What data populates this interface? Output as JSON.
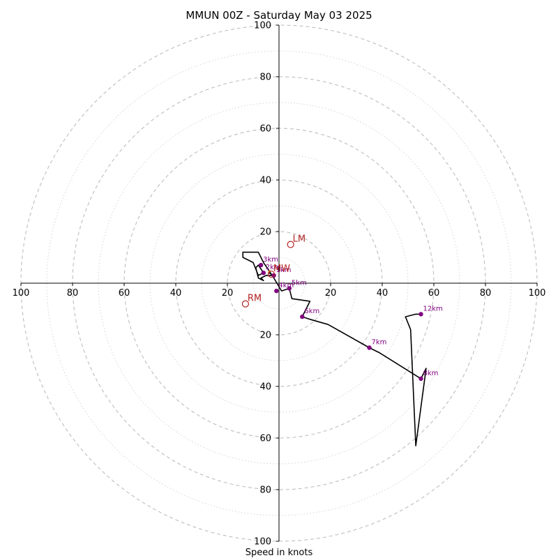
{
  "chart_data": {
    "type": "scatter",
    "title": "MMUN 00Z - Saturday May 03 2025",
    "xlabel": "Speed in knots",
    "ylabel": "",
    "xlim": [
      -100,
      100
    ],
    "ylim": [
      -100,
      100
    ],
    "grid": true,
    "ring_labels": {
      "x_left": [
        "100",
        "80",
        "60",
        "40",
        "20"
      ],
      "x_right": [
        "20",
        "40",
        "60",
        "80",
        "100"
      ],
      "y_top": [
        "100",
        "80",
        "60",
        "40",
        "20"
      ],
      "y_bottom": [
        "20",
        "40",
        "60",
        "80",
        "100"
      ]
    },
    "hodograph": {
      "color": "#000000",
      "x": [
        -4,
        -2,
        -5,
        -7,
        -6,
        -8,
        -9,
        -8,
        -6,
        -8,
        -10,
        -14,
        -14,
        -13,
        -8,
        -6,
        -2,
        1,
        4,
        5,
        12,
        9,
        12,
        19,
        35,
        39,
        55,
        57,
        53,
        51,
        49,
        53,
        55
      ],
      "y": [
        4,
        3,
        3,
        2,
        1,
        2,
        6,
        7,
        4,
        3,
        8,
        10,
        12,
        12,
        12,
        8,
        2,
        -3,
        -2,
        -6,
        -7,
        -13,
        -14,
        -16,
        -25,
        -27,
        -37,
        -33,
        -63,
        -18,
        -13,
        -12,
        -12
      ]
    },
    "height_markers": {
      "color": "#800080",
      "points": [
        {
          "label": "1km",
          "x": -2,
          "y": 3
        },
        {
          "label": "2km",
          "x": -6,
          "y": 4
        },
        {
          "label": "3km",
          "x": -7,
          "y": 7
        },
        {
          "label": "4km",
          "x": -1,
          "y": -3
        },
        {
          "label": "5km",
          "x": 4,
          "y": -2
        },
        {
          "label": "6km",
          "x": 9,
          "y": -13
        },
        {
          "label": "7km",
          "x": 35,
          "y": -25
        },
        {
          "label": "8km",
          "x": 55,
          "y": -37
        },
        {
          "label": "12km",
          "x": 55,
          "y": -12
        }
      ]
    },
    "storm_motion": {
      "color": "#b22222",
      "points": [
        {
          "label": "LM",
          "x": 4.5,
          "y": 15
        },
        {
          "label": "RM",
          "x": -13,
          "y": -8
        },
        {
          "label": "MW",
          "x": -3,
          "y": 3.5
        }
      ]
    },
    "shear_vector": {
      "color": "#ff8c00",
      "from": [
        -4,
        4
      ],
      "to": [
        -3.5,
        5
      ]
    }
  }
}
